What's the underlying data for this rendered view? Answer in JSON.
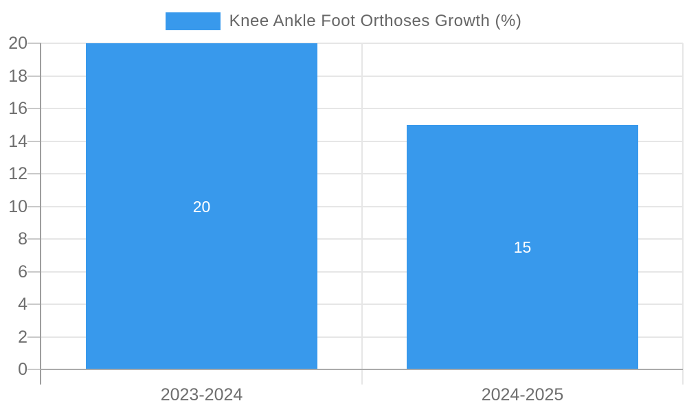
{
  "chart_data": {
    "type": "bar",
    "categories": [
      "2023-2024",
      "2024-2025"
    ],
    "series": [
      {
        "name": "Knee Ankle Foot Orthoses Growth (%)",
        "values": [
          20,
          15
        ]
      }
    ],
    "value_labels": [
      "20",
      "15"
    ],
    "title": "",
    "xlabel": "",
    "ylabel": "",
    "ylim": [
      0,
      20
    ],
    "ytick_step": 2,
    "ytick_labels": [
      "0",
      "2",
      "4",
      "6",
      "8",
      "10",
      "12",
      "14",
      "16",
      "18",
      "20"
    ],
    "grid": true,
    "legend_position": "top",
    "bar_color": "#3899EC"
  },
  "legend": {
    "label": "Knee Ankle Foot Orthoses Growth (%)",
    "swatch_color": "#3899EC"
  },
  "colors": {
    "bar": "#3899EC",
    "gridline": "#e6e6e6",
    "y_axis_line": "#9e9e9e",
    "x_axis_line": "#ababab",
    "tick": "#c9c9c9",
    "tick_text": "#6e6e6e",
    "legend_text": "#666666",
    "bar_value_text": "#ffffff",
    "background": "#ffffff"
  }
}
